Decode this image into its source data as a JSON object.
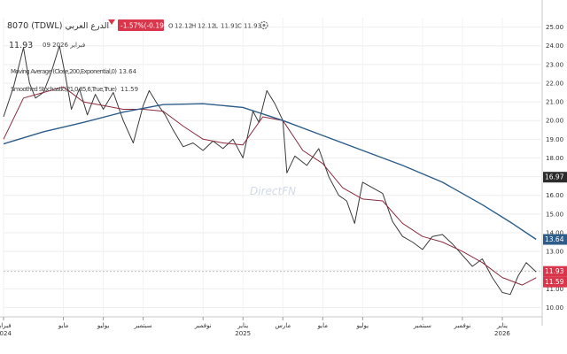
{
  "header": {
    "symbol": "8070 (TDWL) الدرع العربي",
    "change": "-1.57%(-0.19)",
    "ohlc": [
      {
        "k": "O",
        "v": "12.12"
      },
      {
        "k": "H",
        "v": "12.12"
      },
      {
        "k": "L",
        "v": "11.91"
      },
      {
        "k": "C",
        "v": "11.93"
      }
    ],
    "price": "11.93",
    "date": "09 فبراير 2026",
    "indicator_name": "Moving Average (Close,200,Exponential,0)",
    "indicator_value": "13.64",
    "indicator2_name": "Smoothed Stochastic(21,0,85,6,True,True)",
    "indicator2_value": "11.59"
  },
  "watermark": "DirectFN",
  "colors": {
    "price": "#3c3c3c",
    "ma_fast": "#8b2c3e",
    "ma_slow": "#2e5d8a",
    "up_badge": "#2b2b2b",
    "down_badge": "#d9364b",
    "ma_badge": "#2e5d8a"
  },
  "price_tags": [
    {
      "label": "16.97",
      "value": 16.97,
      "color": "#2b2b2b"
    },
    {
      "label": "13.64",
      "value": 13.64,
      "color": "#2e5d8a"
    },
    {
      "label": "11.93",
      "value": 11.93,
      "color": "#d9364b"
    },
    {
      "label": "11.59",
      "value": 11.59,
      "color": "#d9364b"
    }
  ],
  "chart_data": {
    "type": "line",
    "title": "8070 (TDWL) الدرع العربي",
    "ylim": [
      9.5,
      25.5
    ],
    "y_ticks": [
      "10.00",
      "11.00",
      "12.00",
      "13.00",
      "14.00",
      "15.00",
      "16.00",
      "17.00",
      "18.00",
      "19.00",
      "20.00",
      "21.00",
      "22.00",
      "23.00",
      "24.00",
      "25.00"
    ],
    "x_ticks": [
      {
        "t": 0,
        "label": "فبراير",
        "sub": "2024"
      },
      {
        "t": 3,
        "label": "مايو",
        "sub": ""
      },
      {
        "t": 5,
        "label": "يوليو",
        "sub": ""
      },
      {
        "t": 7,
        "label": "سبتمبر",
        "sub": ""
      },
      {
        "t": 10,
        "label": "نوفمبر",
        "sub": ""
      },
      {
        "t": 12,
        "label": "يناير",
        "sub": "2025"
      },
      {
        "t": 14,
        "label": "مارس",
        "sub": ""
      },
      {
        "t": 16,
        "label": "مايو",
        "sub": ""
      },
      {
        "t": 18,
        "label": "يوليو",
        "sub": ""
      },
      {
        "t": 21,
        "label": "سبتمبر",
        "sub": ""
      },
      {
        "t": 23,
        "label": "نوفمبر",
        "sub": ""
      },
      {
        "t": 25,
        "label": "يناير",
        "sub": "2026"
      }
    ],
    "series": [
      {
        "name": "8070",
        "points": [
          [
            0,
            20.2
          ],
          [
            0.5,
            21.8
          ],
          [
            1,
            23.9
          ],
          [
            1.3,
            22.0
          ],
          [
            1.6,
            21.2
          ],
          [
            2,
            21.5
          ],
          [
            2.4,
            22.6
          ],
          [
            2.8,
            24.0
          ],
          [
            3.1,
            22.4
          ],
          [
            3.4,
            20.6
          ],
          [
            3.8,
            21.7
          ],
          [
            4.2,
            20.3
          ],
          [
            4.6,
            21.4
          ],
          [
            5,
            20.6
          ],
          [
            5.5,
            21.5
          ],
          [
            6,
            20.0
          ],
          [
            6.5,
            18.8
          ],
          [
            7,
            20.8
          ],
          [
            7.3,
            21.6
          ],
          [
            7.7,
            20.9
          ],
          [
            8.1,
            20.3
          ],
          [
            8.5,
            19.5
          ],
          [
            9,
            18.6
          ],
          [
            9.5,
            18.8
          ],
          [
            10,
            18.4
          ],
          [
            10.5,
            18.9
          ],
          [
            11,
            18.5
          ],
          [
            11.5,
            19.0
          ],
          [
            12,
            18.0
          ],
          [
            12.5,
            20.5
          ],
          [
            12.8,
            19.9
          ],
          [
            13.2,
            21.6
          ],
          [
            13.6,
            20.9
          ],
          [
            14,
            20.0
          ],
          [
            14.2,
            17.2
          ],
          [
            14.6,
            18.1
          ],
          [
            15.2,
            17.6
          ],
          [
            15.8,
            18.5
          ],
          [
            16.3,
            17.0
          ],
          [
            16.8,
            16.0
          ],
          [
            17.2,
            15.7
          ],
          [
            17.6,
            14.5
          ],
          [
            18,
            16.7
          ],
          [
            18.5,
            16.4
          ],
          [
            19,
            16.1
          ],
          [
            19.5,
            14.6
          ],
          [
            20,
            13.8
          ],
          [
            20.5,
            13.5
          ],
          [
            21,
            13.1
          ],
          [
            21.5,
            13.8
          ],
          [
            22,
            13.9
          ],
          [
            22.5,
            13.4
          ],
          [
            23,
            12.8
          ],
          [
            23.5,
            12.2
          ],
          [
            24,
            12.6
          ],
          [
            24.5,
            11.6
          ],
          [
            25,
            10.8
          ],
          [
            25.4,
            10.7
          ],
          [
            25.8,
            11.7
          ],
          [
            26.2,
            12.4
          ],
          [
            26.7,
            11.9
          ]
        ]
      },
      {
        "name": "",
        "points": [
          [
            0,
            19.0
          ],
          [
            1,
            21.2
          ],
          [
            2,
            21.5
          ],
          [
            3,
            21.8
          ],
          [
            4,
            21.0
          ],
          [
            5,
            20.8
          ],
          [
            6,
            20.6
          ],
          [
            7,
            20.6
          ],
          [
            8,
            20.5
          ],
          [
            9,
            19.7
          ],
          [
            10,
            19.0
          ],
          [
            11,
            18.8
          ],
          [
            12,
            18.7
          ],
          [
            13,
            20.2
          ],
          [
            14,
            20.0
          ],
          [
            15,
            18.4
          ],
          [
            16,
            17.7
          ],
          [
            17,
            16.4
          ],
          [
            18,
            15.8
          ],
          [
            19,
            15.7
          ],
          [
            20,
            14.5
          ],
          [
            21,
            13.8
          ],
          [
            22,
            13.5
          ],
          [
            23,
            13.0
          ],
          [
            24,
            12.4
          ],
          [
            25,
            11.6
          ],
          [
            26,
            11.2
          ],
          [
            26.7,
            11.59
          ]
        ]
      },
      {
        "name": "Moving Average (Close,200,Exponential,0)",
        "points": [
          [
            0,
            18.75
          ],
          [
            2,
            19.4
          ],
          [
            4,
            19.9
          ],
          [
            6,
            20.45
          ],
          [
            8,
            20.85
          ],
          [
            10,
            20.9
          ],
          [
            12,
            20.7
          ],
          [
            14,
            20.0
          ],
          [
            16,
            19.2
          ],
          [
            18,
            18.4
          ],
          [
            20,
            17.6
          ],
          [
            22,
            16.7
          ],
          [
            24,
            15.5
          ],
          [
            25.5,
            14.5
          ],
          [
            26.7,
            13.64
          ]
        ]
      }
    ]
  }
}
